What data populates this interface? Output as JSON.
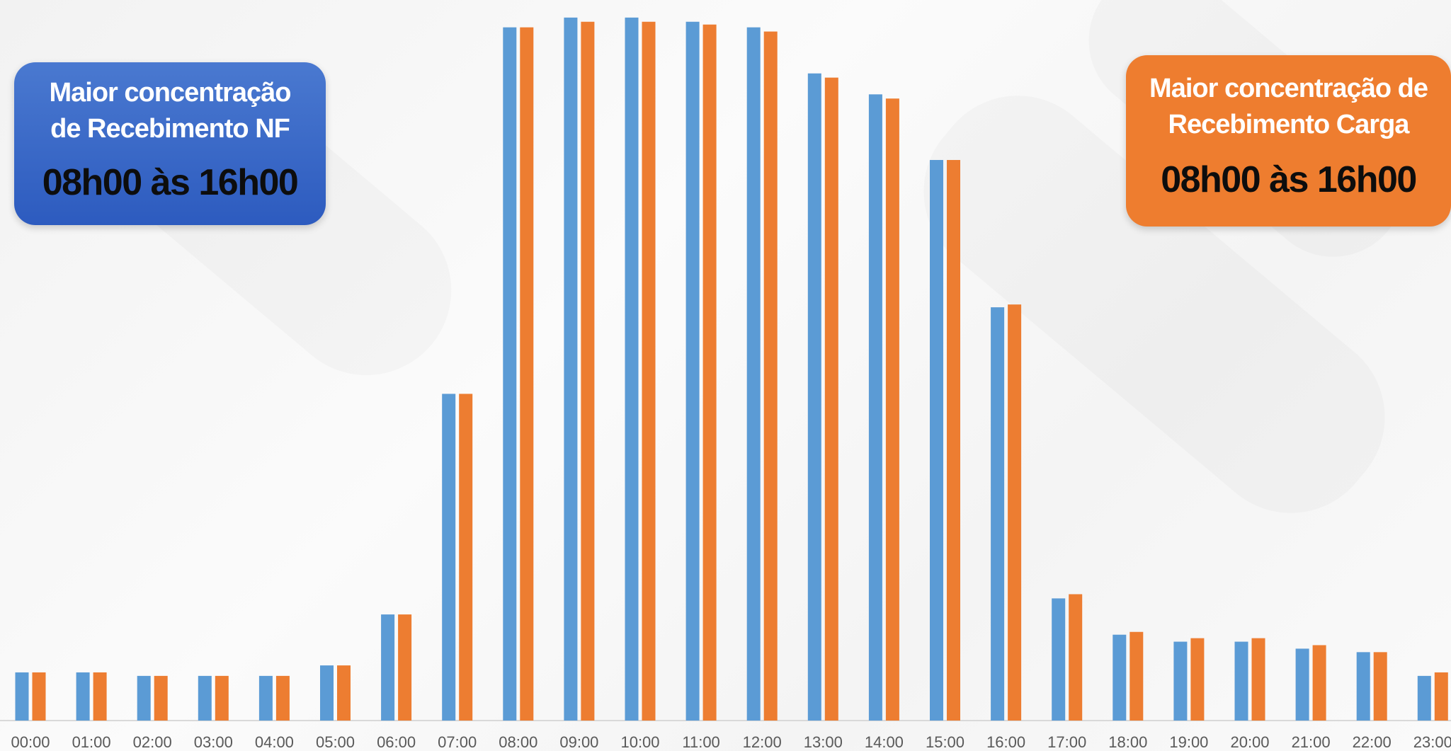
{
  "callouts": {
    "nf": {
      "title": "Maior concentração\nde Recebimento NF",
      "range": "08h00 às 16h00",
      "color": "#3a67c6"
    },
    "carga": {
      "title": "Maior concentração de\nRecebimento Carga",
      "range": "08h00 às 16h00",
      "color": "#ee7d2f"
    }
  },
  "chart_data": {
    "type": "bar",
    "categories": [
      "00:00",
      "01:00",
      "02:00",
      "03:00",
      "04:00",
      "05:00",
      "06:00",
      "07:00",
      "08:00",
      "09:00",
      "10:00",
      "11:00",
      "12:00",
      "13:00",
      "14:00",
      "15:00",
      "16:00",
      "17:00",
      "18:00",
      "19:00",
      "20:00",
      "21:00",
      "22:00",
      "23:00"
    ],
    "series": [
      {
        "color": "#5b9bd5",
        "values": [
          6.9,
          6.9,
          6.4,
          6.4,
          6.4,
          7.9,
          15.2,
          46.8,
          99.3,
          100.7,
          100.7,
          100.1,
          99.3,
          92.7,
          89.7,
          80.3,
          59.2,
          17.5,
          12.3,
          11.3,
          11.3,
          10.3,
          9.8,
          6.4
        ]
      },
      {
        "color": "#ed7d31",
        "values": [
          6.9,
          6.9,
          6.4,
          6.4,
          6.4,
          7.9,
          15.2,
          46.8,
          99.3,
          100.1,
          100.1,
          99.7,
          98.7,
          92.1,
          89.1,
          80.3,
          59.6,
          18.1,
          12.7,
          11.8,
          11.8,
          10.8,
          9.8,
          6.9
        ]
      }
    ],
    "title": "",
    "xlabel": "",
    "ylabel": "",
    "ylim": [
      0,
      102
    ],
    "grid": false,
    "legend": "none"
  }
}
